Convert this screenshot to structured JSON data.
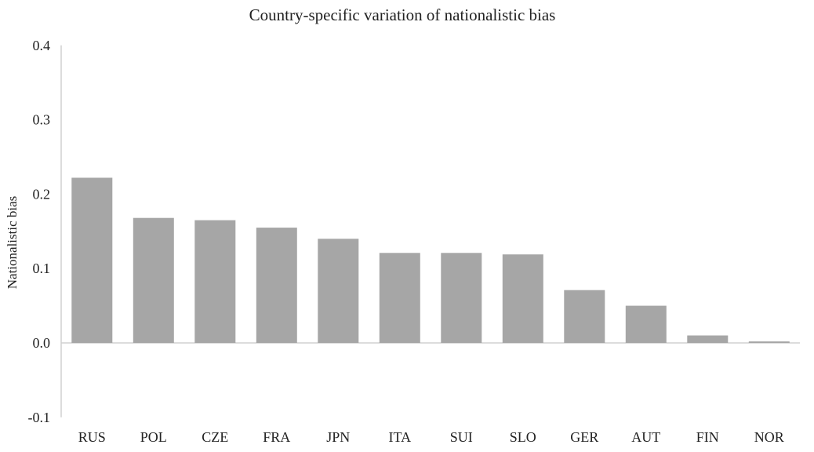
{
  "chart_data": {
    "type": "bar",
    "title": "Country-specific variation of nationalistic bias",
    "xlabel": "",
    "ylabel": "Nationalistic bias",
    "categories": [
      "RUS",
      "POL",
      "CZE",
      "FRA",
      "JPN",
      "ITA",
      "SUI",
      "SLO",
      "GER",
      "AUT",
      "FIN",
      "NOR"
    ],
    "values": [
      0.222,
      0.168,
      0.165,
      0.155,
      0.14,
      0.121,
      0.121,
      0.119,
      0.071,
      0.05,
      0.01,
      0.002
    ],
    "ylim": [
      -0.1,
      0.4
    ],
    "yticks": [
      "0.4",
      "0.3",
      "0.2",
      "0.1",
      "0.0",
      "-0.1"
    ],
    "ytick_values": [
      0.4,
      0.3,
      0.2,
      0.1,
      0.0,
      -0.1
    ],
    "grid": false,
    "bar_color": "#a6a6a6",
    "axis_color": "#d0d0d0"
  }
}
